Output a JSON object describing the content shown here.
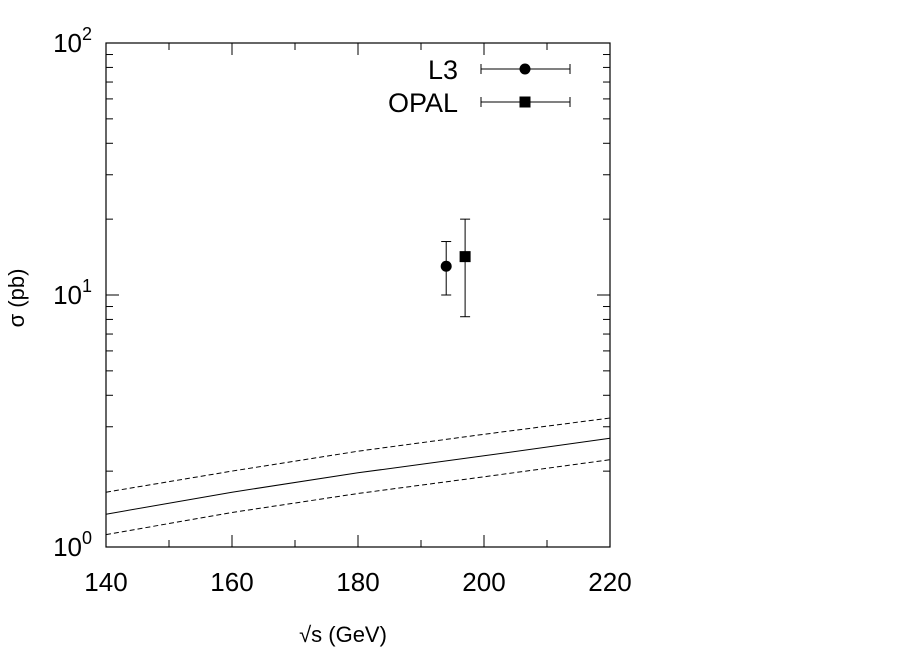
{
  "chart_data": {
    "type": "scatter",
    "xlabel": "√s (GeV)",
    "ylabel": "σ (pb)",
    "xlim": [
      140,
      220
    ],
    "ylim": [
      1,
      100
    ],
    "yscale": "log",
    "x_ticks": [
      "140",
      "160",
      "180",
      "200",
      "220"
    ],
    "x_tick_values": [
      140,
      160,
      180,
      200,
      220
    ],
    "y_ticks": [
      {
        "base": "10",
        "exp": "0",
        "value": 1
      },
      {
        "base": "10",
        "exp": "1",
        "value": 10
      },
      {
        "base": "10",
        "exp": "2",
        "value": 100
      }
    ],
    "legend_position": "top-right",
    "grid": false,
    "series": [
      {
        "name": "L3",
        "marker": "circle",
        "points": [
          {
            "x": 194,
            "y": 13.0,
            "y_low": 10.0,
            "y_high": 16.3
          }
        ]
      },
      {
        "name": "OPAL",
        "marker": "square",
        "points": [
          {
            "x": 197,
            "y": 14.2,
            "y_low": 8.2,
            "y_high": 20.0
          }
        ]
      }
    ],
    "curves": [
      {
        "style": "dashed",
        "x": [
          140,
          160,
          180,
          200,
          220
        ],
        "y": [
          1.65,
          2.0,
          2.4,
          2.8,
          3.25
        ]
      },
      {
        "style": "solid",
        "x": [
          140,
          160,
          180,
          200,
          220
        ],
        "y": [
          1.35,
          1.65,
          1.97,
          2.3,
          2.7
        ]
      },
      {
        "style": "dashed",
        "x": [
          140,
          160,
          180,
          200,
          220
        ],
        "y": [
          1.12,
          1.37,
          1.63,
          1.9,
          2.22
        ]
      }
    ]
  }
}
